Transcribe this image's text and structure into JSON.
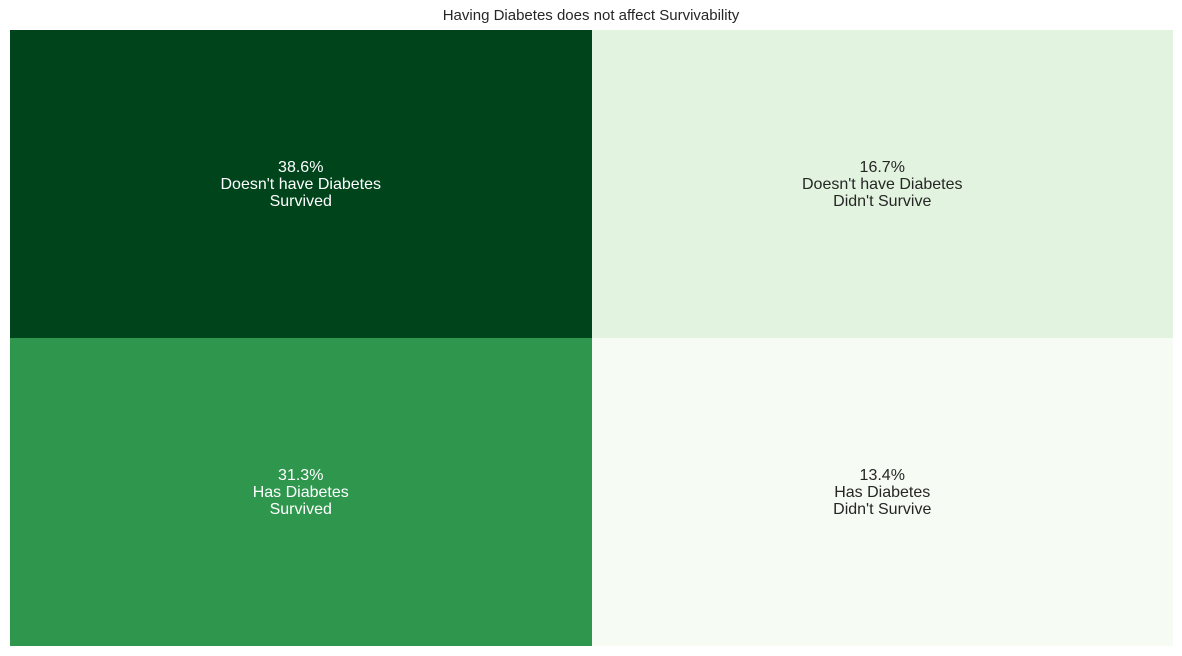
{
  "chart_data": {
    "type": "heatmap",
    "title": "Having Diabetes does not affect Survivability",
    "xlabel": "",
    "ylabel": "",
    "grid": false,
    "legend": "none",
    "rows": [
      "Doesn't have Diabetes",
      "Has Diabetes"
    ],
    "columns": [
      "Survived",
      "Didn't Survive"
    ],
    "values": [
      [
        38.6,
        16.7
      ],
      [
        31.3,
        13.4
      ]
    ],
    "cells": [
      {
        "percent": "38.6%",
        "row_label": "Doesn't have Diabetes",
        "col_label": "Survived",
        "value": 38.6,
        "color": "#00441b",
        "text_color": "#ffffff"
      },
      {
        "percent": "16.7%",
        "row_label": "Doesn't have Diabetes",
        "col_label": "Didn't Survive",
        "value": 16.7,
        "color": "#e2f4df",
        "text_color": "#262626"
      },
      {
        "percent": "31.3%",
        "row_label": "Has Diabetes",
        "col_label": "Survived",
        "value": 31.3,
        "color": "#2f964e",
        "text_color": "#ffffff"
      },
      {
        "percent": "13.4%",
        "row_label": "Has Diabetes",
        "col_label": "Didn't Survive",
        "value": 13.4,
        "color": "#f6fbf4",
        "text_color": "#262626"
      }
    ]
  }
}
